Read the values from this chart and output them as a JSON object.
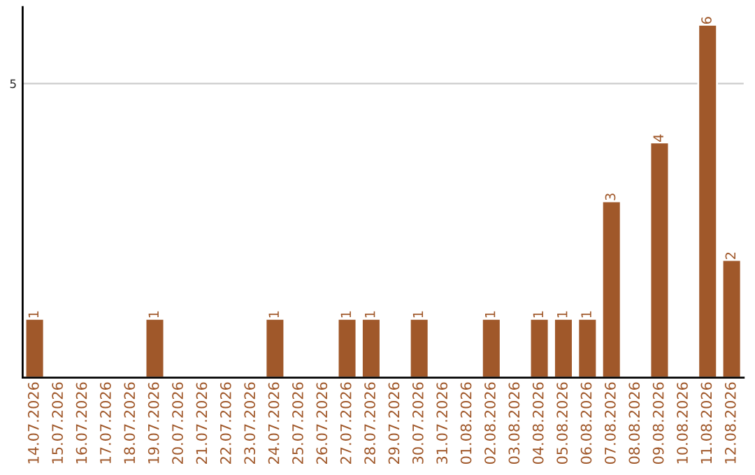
{
  "chart_data": {
    "type": "bar",
    "categories": [
      "14.07.2026",
      "15.07.2026",
      "16.07.2026",
      "17.07.2026",
      "18.07.2026",
      "19.07.2026",
      "20.07.2026",
      "21.07.2026",
      "22.07.2026",
      "23.07.2026",
      "24.07.2026",
      "25.07.2026",
      "26.07.2026",
      "27.07.2026",
      "28.07.2026",
      "29.07.2026",
      "30.07.2026",
      "31.07.2026",
      "01.08.2026",
      "02.08.2026",
      "03.08.2026",
      "04.08.2026",
      "05.08.2026",
      "06.08.2026",
      "07.08.2026",
      "08.08.2026",
      "09.08.2026",
      "10.08.2026",
      "11.08.2026",
      "12.08.2026"
    ],
    "values": [
      1,
      null,
      null,
      null,
      null,
      1,
      null,
      null,
      null,
      null,
      1,
      null,
      null,
      1,
      1,
      null,
      1,
      null,
      null,
      1,
      null,
      1,
      1,
      1,
      3,
      null,
      4,
      null,
      6,
      2
    ],
    "value_labels": [
      "1",
      null,
      null,
      null,
      null,
      "1",
      null,
      null,
      null,
      null,
      "1",
      null,
      null,
      "1",
      "1",
      null,
      "1",
      null,
      null,
      "1",
      null,
      "1",
      "1",
      "1",
      "3",
      null,
      "4",
      null,
      "6",
      "2"
    ],
    "color": "#a0582a",
    "ylim": [
      0,
      6.3
    ],
    "yticks": [
      5
    ],
    "grid": "y"
  }
}
